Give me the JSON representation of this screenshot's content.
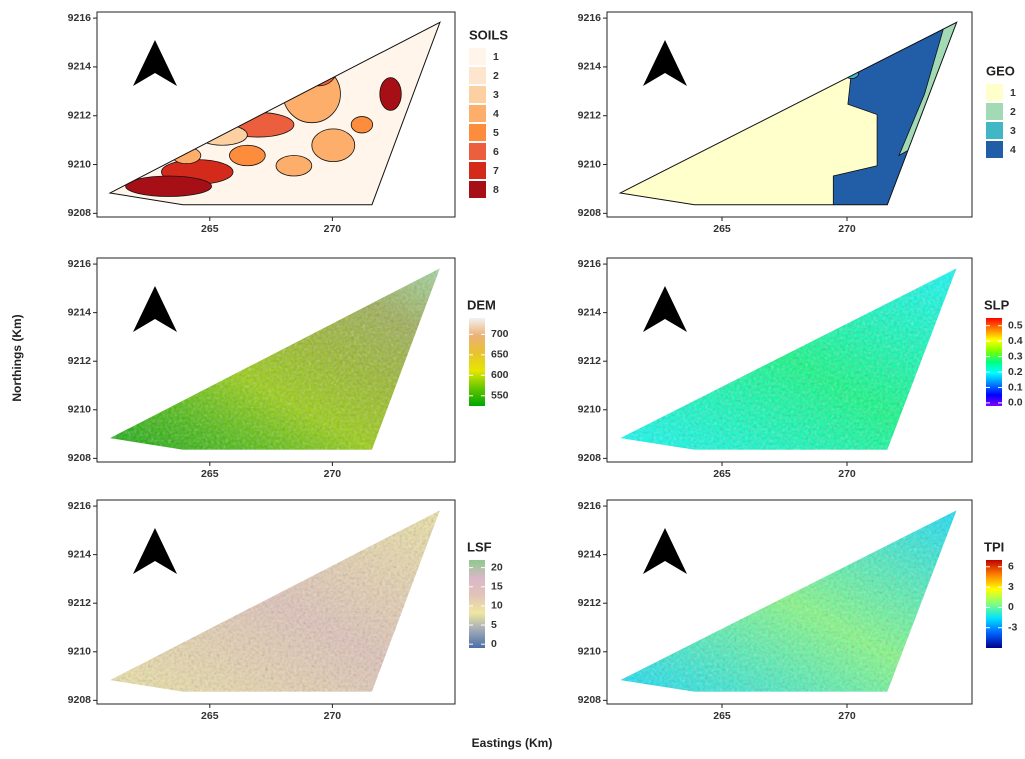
{
  "xlabel": "Eastings (Km)",
  "ylabel": "Northings (Km)",
  "panels": [
    {
      "kind": "discrete",
      "legend_title": "SOILS",
      "xticks": [
        265,
        270
      ],
      "yticks": [
        9208,
        9210,
        9212,
        9214,
        9216
      ],
      "legend_labels": [
        "1",
        "2",
        "3",
        "4",
        "5",
        "6",
        "7",
        "8"
      ],
      "legend_colors": [
        "#fff5eb",
        "#fee6ce",
        "#fdd0a2",
        "#fdae6b",
        "#fd8d3c",
        "#ec5f3e",
        "#d42a1c",
        "#a50f15"
      ]
    },
    {
      "kind": "discrete",
      "legend_title": "GEO",
      "xticks": [
        265,
        270
      ],
      "yticks": [
        9208,
        9210,
        9212,
        9214,
        9216
      ],
      "legend_labels": [
        "1",
        "2",
        "3",
        "4"
      ],
      "legend_colors": [
        "#ffffcc",
        "#a1dab4",
        "#41b6c4",
        "#225ea8"
      ]
    },
    {
      "kind": "continuous",
      "legend_title": "DEM",
      "xticks": [
        265,
        270
      ],
      "yticks": [
        9208,
        9210,
        9212,
        9214,
        9216
      ],
      "legend_lim": [
        525,
        740
      ],
      "legend_ticks": [
        550,
        600,
        650,
        700
      ],
      "legend_colors": [
        "#00a600",
        "#63c600",
        "#e6e600",
        "#e8c32e",
        "#ecb176",
        "#f2f2f2"
      ]
    },
    {
      "kind": "continuous",
      "legend_title": "SLP",
      "xticks": [
        265,
        270
      ],
      "yticks": [
        9208,
        9210,
        9212,
        9214,
        9216
      ],
      "legend_lim": [
        -0.02,
        0.55
      ],
      "legend_ticks": [
        {
          "value": 0,
          "label": "0.0"
        },
        0.1,
        0.2,
        0.3,
        0.4,
        0.5
      ],
      "legend_colors": [
        "#8000ff",
        "#0000ff",
        "#0080ff",
        "#00ffff",
        "#00ff80",
        "#80ff00",
        "#ffff00",
        "#ff8000",
        "#ff0000"
      ]
    },
    {
      "kind": "continuous",
      "legend_title": "LSF",
      "xticks": [
        265,
        270
      ],
      "yticks": [
        9208,
        9210,
        9212,
        9214,
        9216
      ],
      "legend_lim": [
        -1,
        22
      ],
      "legend_ticks": [
        0,
        5,
        10,
        15,
        20
      ],
      "legend_colors": [
        "#4a6fa5",
        "#9fa9b8",
        "#f0e6a0",
        "#e2c3b8",
        "#d9b8c8",
        "#8ec98e"
      ]
    },
    {
      "kind": "continuous",
      "legend_title": "TPI",
      "xticks": [
        265,
        270
      ],
      "yticks": [
        9208,
        9210,
        9212,
        9214,
        9216
      ],
      "legend_lim": [
        -6,
        7
      ],
      "legend_ticks": [
        -3,
        0,
        3,
        6
      ],
      "legend_colors": [
        "#00008b",
        "#0060ff",
        "#00e0ff",
        "#7fff7f",
        "#ffff00",
        "#ff8000",
        "#c00000"
      ]
    }
  ]
}
